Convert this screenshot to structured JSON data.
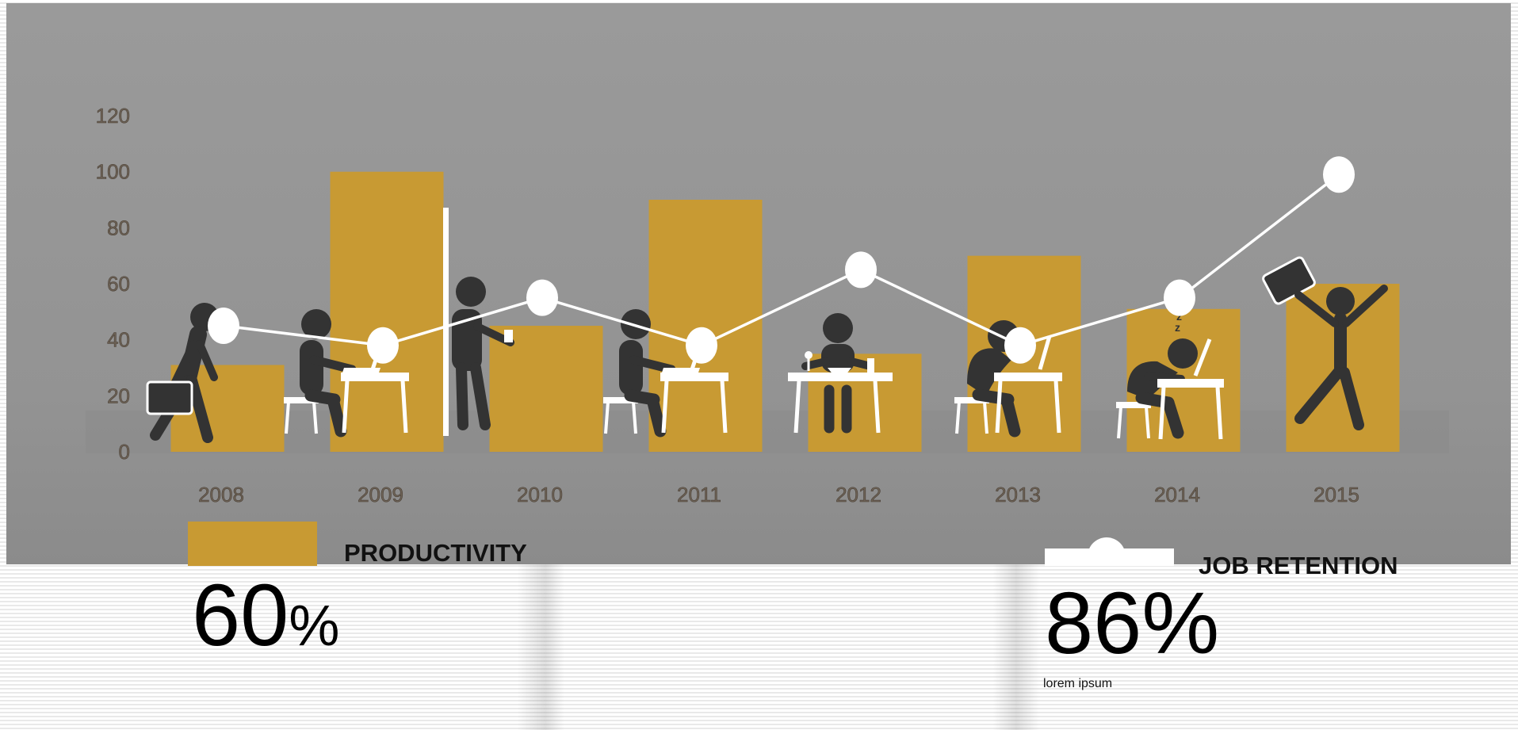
{
  "chart_data": {
    "type": "bar",
    "categories": [
      "2008",
      "2009",
      "2010",
      "2011",
      "2012",
      "2013",
      "2014",
      "2015"
    ],
    "series": [
      {
        "name": "PRODUCTIVITY",
        "kind": "bar",
        "color": "#c89a33",
        "values": [
          31,
          100,
          45,
          90,
          35,
          70,
          51,
          60
        ]
      },
      {
        "name": "JOB RETENTION",
        "kind": "line",
        "color": "#ffffff",
        "values": [
          45,
          38,
          55,
          38,
          65,
          38,
          55,
          99
        ]
      }
    ],
    "ylim": [
      0,
      120
    ],
    "yticks": [
      "0",
      "20",
      "40",
      "60",
      "80",
      "100",
      "120"
    ],
    "grid": false,
    "legend_position": "bottom"
  },
  "stats": {
    "productivity": {
      "label": "PRODUCTIVITY",
      "value": "60",
      "unit": "%"
    },
    "retention": {
      "label": "JOB RETENTION",
      "value": "86%",
      "caption": "lorem ipsum"
    }
  },
  "colors": {
    "panel": "#969696",
    "bar": "#c89a33",
    "line": "#ffffff",
    "figure": "#333333",
    "tick_text": "#6d6256"
  },
  "icons": [
    "walking-briefcase-figure-icon",
    "desk-laptop-figure-icon",
    "standing-coffee-figure-icon",
    "desk-laptop-figure-icon",
    "eating-figure-icon",
    "hunched-desk-figure-icon",
    "sleeping-desk-figure-icon",
    "jumping-celebration-figure-icon"
  ]
}
